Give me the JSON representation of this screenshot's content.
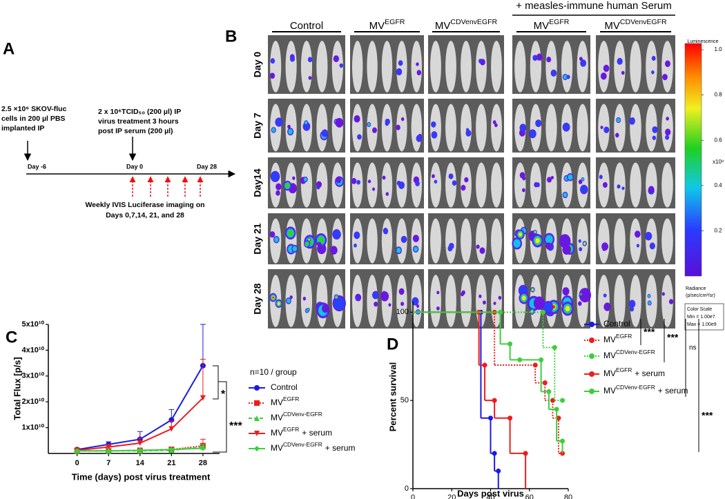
{
  "panel_labels": [
    "A",
    "B",
    "C",
    "D"
  ],
  "timeline": {
    "event_left": [
      "2.5 ×10⁶ SKOV-fluc",
      "cells in 200 µl PBS",
      "implanted IP"
    ],
    "event_right": [
      "2 x 10⁶TCID₅₀ (200 µl)  IP",
      "virus treatment  3 hours",
      "post IP serum (200 µl)"
    ],
    "day_labels": [
      "Day -6",
      "Day 0",
      "Day 28"
    ],
    "imaging_note": [
      "Weekly IVIS Luciferase imaging on",
      "Days 0,7,14, 21, and 28"
    ]
  },
  "imaging": {
    "serum_header": "+ measles-immune human Serum",
    "groups": [
      {
        "name": "Control"
      },
      {
        "name": "MV",
        "name_sup": "EGFR"
      },
      {
        "name": "MV",
        "name_sup": "CDVenvEGFR"
      },
      {
        "name": "MV",
        "name_sup": "EGFR"
      },
      {
        "name": "MV",
        "name_sup": "CDVenvEGFR"
      }
    ],
    "days": [
      "Day 0",
      "Day 7",
      "Day14",
      "Day 21",
      "Day 28"
    ],
    "colorbar": {
      "title": "Luminescence",
      "lim": [
        0,
        1
      ],
      "ticks": [
        0.2,
        0.4,
        0.6,
        0.8,
        {
          "value": 1,
          "label": "1.0"
        }
      ],
      "unit": "x10⁹",
      "radiance": [
        "Radiance",
        "(p/sec/cm²/sr)"
      ],
      "scale": [
        "Color Scale",
        "Min = 1.00e7",
        "Max = 1.00e9"
      ]
    }
  },
  "chart_data": [
    {
      "type": "line",
      "xlabel": "Time (days) post virus treatment",
      "ylabel": "Total Flux [p/s]",
      "legend_title": "n=10 / group",
      "annotations": [
        "*",
        "***"
      ],
      "x": [
        0,
        7,
        14,
        21,
        28
      ],
      "xlim": [
        -6.4,
        31.7
      ],
      "xticks": [
        0,
        7,
        14,
        21,
        28
      ],
      "ylim": [
        0,
        50000000000
      ],
      "yticks": [
        {
          "value": 10000000000,
          "label": "1x10¹⁰"
        },
        {
          "value": 20000000000,
          "label": "2x10¹⁰"
        },
        {
          "value": 30000000000,
          "label": "3x10¹⁰"
        },
        {
          "value": 40000000000,
          "label": "4x10¹⁰"
        },
        {
          "value": 50000000000,
          "label": "5x10¹⁰"
        }
      ],
      "series": [
        {
          "name": "Control",
          "color": "#1a1ae6",
          "marker": "circle",
          "dash": "solid",
          "values": [
            1500000000,
            3500000000,
            5500000000,
            13000000000,
            34000000000
          ],
          "errors": [
            500000000,
            1000000000,
            3000000000,
            4000000000,
            16000000000
          ]
        },
        {
          "name": "MV",
          "name_sup": "EGFR",
          "color": "#ee1c1c",
          "marker": "square",
          "dash": "dotted",
          "values": [
            1000000000,
            1000000000,
            1200000000,
            1500000000,
            3000000000
          ],
          "errors": [
            300000000,
            300000000,
            500000000,
            1000000000,
            2500000000
          ]
        },
        {
          "name": "MV",
          "name_sup": "CDVenv-EGFR",
          "color": "#3ccf3c",
          "marker": "triangle",
          "dash": "dashed",
          "values": [
            1000000000,
            1000000000,
            1000000000,
            1200000000,
            2500000000
          ],
          "errors": [
            300000000,
            300000000,
            400000000,
            600000000,
            1000000000
          ]
        },
        {
          "name": "MV",
          "name_sup": "EGFR",
          "name_suffix": "+ serum",
          "color": "#ee1c1c",
          "marker": "triangle-down",
          "dash": "solid",
          "values": [
            1200000000,
            2500000000,
            4000000000,
            9500000000,
            21500000000
          ],
          "errors": [
            300000000,
            1000000000,
            2000000000,
            3000000000,
            15000000000
          ]
        },
        {
          "name": "MV",
          "name_sup": "CDVenv-EGFR",
          "name_suffix": "+ serum",
          "color": "#3ccf3c",
          "marker": "diamond",
          "dash": "solid",
          "values": [
            1000000000,
            1000000000,
            1200000000,
            1500000000,
            2000000000
          ],
          "errors": [
            300000000,
            300000000,
            400000000,
            500000000,
            800000000
          ]
        }
      ]
    },
    {
      "type": "step",
      "xlabel": "Days post virus",
      "ylabel": "Percent survival",
      "annotations": [
        "***",
        "***",
        "ns",
        "***"
      ],
      "xlim": [
        0,
        80
      ],
      "xticks": [
        0,
        20,
        40,
        60,
        80
      ],
      "ylim": [
        0,
        106
      ],
      "yticks": [
        0,
        50,
        100
      ],
      "series": [
        {
          "name": "Control",
          "color": "#1a1ae6",
          "dash": "solid",
          "x": [
            0,
            35,
            40,
            42,
            44
          ],
          "values": [
            100,
            40,
            20,
            10,
            0
          ]
        },
        {
          "name": "MV",
          "name_sup": "EGFR",
          "color": "#ee1c1c",
          "dash": "dotted",
          "x": [
            0,
            42,
            63,
            68,
            72,
            75,
            77
          ],
          "values": [
            100,
            70,
            60,
            50,
            40,
            20,
            20
          ]
        },
        {
          "name": "MV",
          "name_sup": "CDVenv-EGFR",
          "color": "#3ccf3c",
          "dash": "dotted",
          "x": [
            0,
            67,
            73,
            77
          ],
          "values": [
            100,
            80,
            50,
            50
          ]
        },
        {
          "name": "MV",
          "name_sup": "EGFR",
          "name_suffix": "+ serum",
          "color": "#ee1c1c",
          "dash": "solid",
          "x": [
            0,
            34,
            37,
            42,
            50,
            58
          ],
          "values": [
            100,
            70,
            50,
            40,
            20,
            0
          ]
        },
        {
          "name": "MV",
          "name_sup": "CDVenv-EGFR",
          "name_suffix": "+ serum",
          "color": "#3ccf3c",
          "dash": "solid",
          "x": [
            0,
            45,
            50,
            55,
            66,
            70,
            74,
            77
          ],
          "values": [
            100,
            82,
            73,
            73,
            55,
            45,
            27,
            20
          ]
        }
      ]
    }
  ]
}
